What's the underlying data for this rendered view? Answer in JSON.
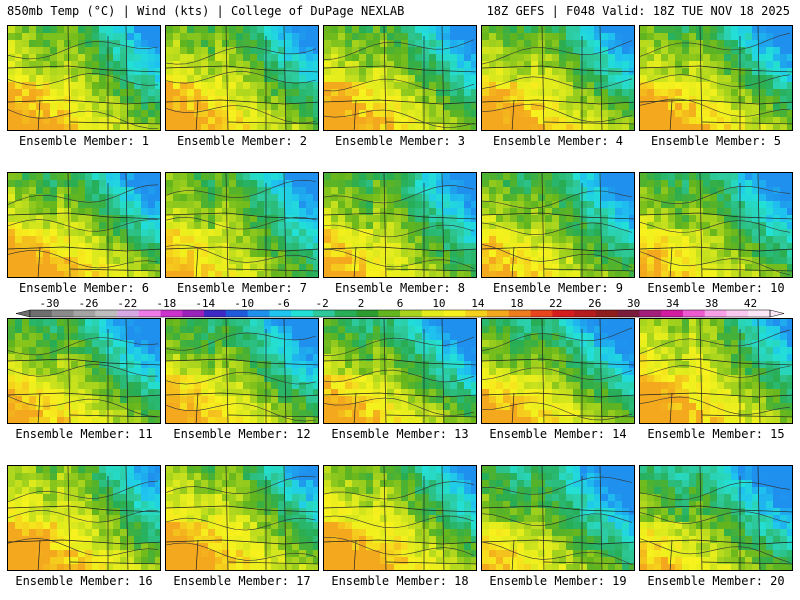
{
  "header": {
    "left": "850mb Temp (°C) | Wind (kts) | College of DuPage NEXLAB",
    "right": "18Z GEFS | F048 Valid: 18Z TUE NOV 18 2025"
  },
  "panels": [
    {
      "caption": "Ensemble Member: 1",
      "variant": 0
    },
    {
      "caption": "Ensemble Member: 2",
      "variant": 1
    },
    {
      "caption": "Ensemble Member: 3",
      "variant": 2
    },
    {
      "caption": "Ensemble Member: 4",
      "variant": 3
    },
    {
      "caption": "Ensemble Member: 5",
      "variant": 4
    },
    {
      "caption": "Ensemble Member: 6",
      "variant": 5
    },
    {
      "caption": "Ensemble Member: 7",
      "variant": 6
    },
    {
      "caption": "Ensemble Member: 8",
      "variant": 7
    },
    {
      "caption": "Ensemble Member: 9",
      "variant": 8
    },
    {
      "caption": "Ensemble Member: 10",
      "variant": 9
    },
    {
      "caption": "Ensemble Member: 11",
      "variant": 10
    },
    {
      "caption": "Ensemble Member: 12",
      "variant": 11
    },
    {
      "caption": "Ensemble Member: 13",
      "variant": 12
    },
    {
      "caption": "Ensemble Member: 14",
      "variant": 13
    },
    {
      "caption": "Ensemble Member: 15",
      "variant": 14
    },
    {
      "caption": "Ensemble Member: 16",
      "variant": 15
    },
    {
      "caption": "Ensemble Member: 17",
      "variant": 16
    },
    {
      "caption": "Ensemble Member: 18",
      "variant": 17
    },
    {
      "caption": "Ensemble Member: 19",
      "variant": 18
    },
    {
      "caption": "Ensemble Member: 20",
      "variant": 19
    }
  ],
  "colorbar": {
    "labels": [
      "-30",
      "-26",
      "-22",
      "-18",
      "-14",
      "-10",
      "-6",
      "-2",
      "2",
      "6",
      "10",
      "14",
      "18",
      "22",
      "26",
      "30",
      "34",
      "38",
      "42"
    ],
    "colors": [
      "#6e6e6e",
      "#8a8a8a",
      "#a3a3a3",
      "#bdbdbd",
      "#d7a9e4",
      "#ee7ae8",
      "#cc33cc",
      "#9a22bb",
      "#3d2ac6",
      "#1f5adc",
      "#1d90ee",
      "#1fc3ef",
      "#23e0d6",
      "#2ec99b",
      "#27ad55",
      "#2c9c2e",
      "#63b51d",
      "#a8d41d",
      "#e2ec1d",
      "#f7f21d",
      "#f5d01d",
      "#f3a81d",
      "#ef7d1d",
      "#e8451d",
      "#d51d1d",
      "#b51d1d",
      "#8f1d1d",
      "#7a1d3a",
      "#a31d7a",
      "#d21da3",
      "#ee5ad0",
      "#f7a0e8",
      "#f8c8f0",
      "#fbe6f7"
    ]
  }
}
